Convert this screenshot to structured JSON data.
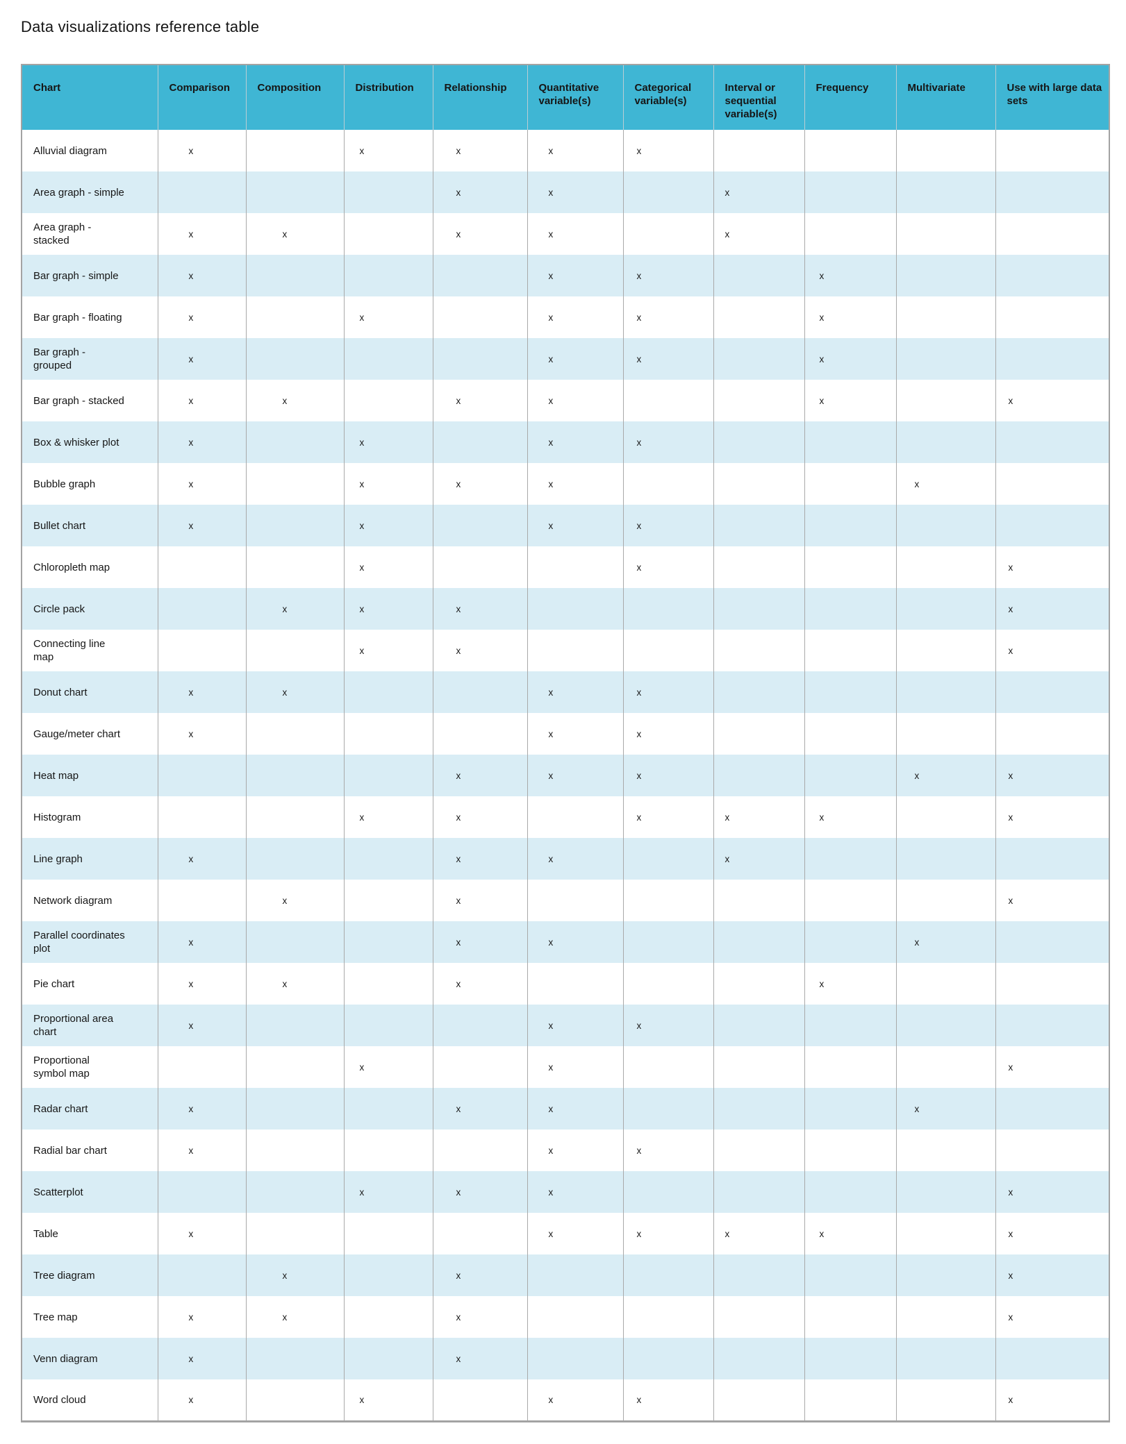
{
  "page_title": "Data visualizations reference table",
  "colors": {
    "header_bg": "#3fb6d4",
    "alt_row_bg": "#d9edf5",
    "row_bg": "#ffffff",
    "grid_line": "#a9a9a9",
    "text": "#161616"
  },
  "table": {
    "mark_symbol": "x",
    "columns": [
      {
        "label": "Chart"
      },
      {
        "label": "Comparison"
      },
      {
        "label": "Composition"
      },
      {
        "label": "Distribution"
      },
      {
        "label": "Relationship"
      },
      {
        "label": "Quantitative variable(s)"
      },
      {
        "label": "Categorical variable(s)"
      },
      {
        "label": "Interval or sequential variable(s)"
      },
      {
        "label": "Frequency"
      },
      {
        "label": "Multivariate"
      },
      {
        "label": "Use with large data sets"
      }
    ],
    "rows": [
      {
        "chart": "Alluvial diagram",
        "marks": [
          1,
          0,
          1,
          1,
          1,
          1,
          0,
          0,
          0,
          0
        ]
      },
      {
        "chart": "Area graph - simple",
        "marks": [
          0,
          0,
          0,
          1,
          1,
          0,
          1,
          0,
          0,
          0
        ]
      },
      {
        "chart": "Area graph - stacked",
        "marks": [
          1,
          1,
          0,
          1,
          1,
          0,
          1,
          0,
          0,
          0
        ]
      },
      {
        "chart": "Bar graph - simple",
        "marks": [
          1,
          0,
          0,
          0,
          1,
          1,
          0,
          1,
          0,
          0
        ]
      },
      {
        "chart": "Bar graph - floating",
        "marks": [
          1,
          0,
          1,
          0,
          1,
          1,
          0,
          1,
          0,
          0
        ]
      },
      {
        "chart": "Bar graph - grouped",
        "marks": [
          1,
          0,
          0,
          0,
          1,
          1,
          0,
          1,
          0,
          0
        ]
      },
      {
        "chart": "Bar graph - stacked",
        "marks": [
          1,
          1,
          0,
          1,
          1,
          0,
          0,
          1,
          0,
          1
        ]
      },
      {
        "chart": "Box & whisker plot",
        "marks": [
          1,
          0,
          1,
          0,
          1,
          1,
          0,
          0,
          0,
          0
        ]
      },
      {
        "chart": "Bubble graph",
        "marks": [
          1,
          0,
          1,
          1,
          1,
          0,
          0,
          0,
          1,
          0
        ]
      },
      {
        "chart": "Bullet chart",
        "marks": [
          1,
          0,
          1,
          0,
          1,
          1,
          0,
          0,
          0,
          0
        ]
      },
      {
        "chart": "Chloropleth map",
        "marks": [
          0,
          0,
          1,
          0,
          0,
          1,
          0,
          0,
          0,
          1
        ]
      },
      {
        "chart": "Circle pack",
        "marks": [
          0,
          1,
          1,
          1,
          0,
          0,
          0,
          0,
          0,
          1
        ]
      },
      {
        "chart": "Connecting line map",
        "marks": [
          0,
          0,
          1,
          1,
          0,
          0,
          0,
          0,
          0,
          1
        ]
      },
      {
        "chart": "Donut chart",
        "marks": [
          1,
          1,
          0,
          0,
          1,
          1,
          0,
          0,
          0,
          0
        ]
      },
      {
        "chart": "Gauge/meter chart",
        "marks": [
          1,
          0,
          0,
          0,
          1,
          1,
          0,
          0,
          0,
          0
        ]
      },
      {
        "chart": "Heat map",
        "marks": [
          0,
          0,
          0,
          1,
          1,
          1,
          0,
          0,
          1,
          1
        ]
      },
      {
        "chart": "Histogram",
        "marks": [
          0,
          0,
          1,
          1,
          0,
          1,
          1,
          1,
          0,
          1
        ]
      },
      {
        "chart": "Line graph",
        "marks": [
          1,
          0,
          0,
          1,
          1,
          0,
          1,
          0,
          0,
          0
        ]
      },
      {
        "chart": "Network diagram",
        "marks": [
          0,
          1,
          0,
          1,
          0,
          0,
          0,
          0,
          0,
          1
        ]
      },
      {
        "chart": "Parallel coordinates plot",
        "marks": [
          1,
          0,
          0,
          1,
          1,
          0,
          0,
          0,
          1,
          0
        ]
      },
      {
        "chart": "Pie chart",
        "marks": [
          1,
          1,
          0,
          1,
          0,
          0,
          0,
          1,
          0,
          0
        ]
      },
      {
        "chart": "Proportional area chart",
        "marks": [
          1,
          0,
          0,
          0,
          1,
          1,
          0,
          0,
          0,
          0
        ]
      },
      {
        "chart": "Proportional symbol map",
        "marks": [
          0,
          0,
          1,
          0,
          1,
          0,
          0,
          0,
          0,
          1
        ]
      },
      {
        "chart": "Radar chart",
        "marks": [
          1,
          0,
          0,
          1,
          1,
          0,
          0,
          0,
          1,
          0
        ]
      },
      {
        "chart": "Radial bar chart",
        "marks": [
          1,
          0,
          0,
          0,
          1,
          1,
          0,
          0,
          0,
          0
        ]
      },
      {
        "chart": "Scatterplot",
        "marks": [
          0,
          0,
          1,
          1,
          1,
          0,
          0,
          0,
          0,
          1
        ]
      },
      {
        "chart": "Table",
        "marks": [
          1,
          0,
          0,
          0,
          1,
          1,
          1,
          1,
          0,
          1
        ]
      },
      {
        "chart": "Tree diagram",
        "marks": [
          0,
          1,
          0,
          1,
          0,
          0,
          0,
          0,
          0,
          1
        ]
      },
      {
        "chart": "Tree map",
        "marks": [
          1,
          1,
          0,
          1,
          0,
          0,
          0,
          0,
          0,
          1
        ]
      },
      {
        "chart": "Venn diagram",
        "marks": [
          1,
          0,
          0,
          1,
          0,
          0,
          0,
          0,
          0,
          0
        ]
      },
      {
        "chart": "Word cloud",
        "marks": [
          1,
          0,
          1,
          0,
          1,
          1,
          0,
          0,
          0,
          1
        ]
      }
    ]
  }
}
